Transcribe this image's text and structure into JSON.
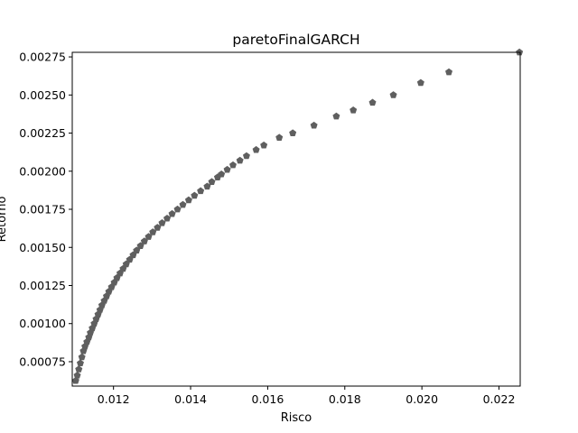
{
  "chart_data": {
    "type": "scatter",
    "title": "paretoFinalGARCH",
    "xlabel": "Risco",
    "ylabel": "Retorno",
    "xlim": [
      0.01093,
      0.02255
    ],
    "ylim": [
      0.00059,
      0.00278
    ],
    "xticks": [
      0.012,
      0.014,
      0.016,
      0.018,
      0.02,
      0.022
    ],
    "xtick_labels": [
      "0.012",
      "0.014",
      "0.016",
      "0.018",
      "0.020",
      "0.022"
    ],
    "yticks": [
      0.00075,
      0.001,
      0.00125,
      0.0015,
      0.00175,
      0.002,
      0.00225,
      0.0025,
      0.00275
    ],
    "ytick_labels": [
      "0.00075",
      "0.00100",
      "0.00125",
      "0.00150",
      "0.00175",
      "0.00200",
      "0.00225",
      "0.00250",
      "0.00275"
    ],
    "grid": false,
    "marker": "pentagon",
    "marker_color": "#5f5f5f",
    "points": [
      [
        0.01102,
        0.000625
      ],
      [
        0.01106,
        0.00066
      ],
      [
        0.0111,
        0.0007
      ],
      [
        0.01114,
        0.00074
      ],
      [
        0.01118,
        0.00078
      ],
      [
        0.01122,
        0.00082
      ],
      [
        0.01126,
        0.00085
      ],
      [
        0.01131,
        0.00088
      ],
      [
        0.01136,
        0.00091
      ],
      [
        0.0114,
        0.00094
      ],
      [
        0.01145,
        0.00097
      ],
      [
        0.0115,
        0.001
      ],
      [
        0.01155,
        0.00103
      ],
      [
        0.0116,
        0.00106
      ],
      [
        0.01165,
        0.00109
      ],
      [
        0.0117,
        0.00112
      ],
      [
        0.01176,
        0.00115
      ],
      [
        0.01182,
        0.00118
      ],
      [
        0.01188,
        0.00121
      ],
      [
        0.01195,
        0.00124
      ],
      [
        0.01202,
        0.00127
      ],
      [
        0.01209,
        0.0013
      ],
      [
        0.01217,
        0.00133
      ],
      [
        0.01225,
        0.00136
      ],
      [
        0.01233,
        0.00139
      ],
      [
        0.01242,
        0.00142
      ],
      [
        0.01251,
        0.00145
      ],
      [
        0.0126,
        0.00148
      ],
      [
        0.0127,
        0.00151
      ],
      [
        0.0128,
        0.00154
      ],
      [
        0.01291,
        0.00157
      ],
      [
        0.01302,
        0.0016
      ],
      [
        0.01314,
        0.00163
      ],
      [
        0.01326,
        0.00166
      ],
      [
        0.01339,
        0.00169
      ],
      [
        0.01352,
        0.00172
      ],
      [
        0.01366,
        0.00175
      ],
      [
        0.0138,
        0.00178
      ],
      [
        0.01395,
        0.00181
      ],
      [
        0.0141,
        0.00184
      ],
      [
        0.01426,
        0.00187
      ],
      [
        0.01443,
        0.0019
      ],
      [
        0.01455,
        0.00193
      ],
      [
        0.0147,
        0.00196
      ],
      [
        0.0148,
        0.00198
      ],
      [
        0.01495,
        0.00201
      ],
      [
        0.0151,
        0.00204
      ],
      [
        0.01528,
        0.00207
      ],
      [
        0.01545,
        0.0021
      ],
      [
        0.0157,
        0.00214
      ],
      [
        0.0159,
        0.00217
      ],
      [
        0.0163,
        0.00222
      ],
      [
        0.01665,
        0.00225
      ],
      [
        0.0172,
        0.0023
      ],
      [
        0.01778,
        0.00236
      ],
      [
        0.01822,
        0.0024
      ],
      [
        0.01872,
        0.00245
      ],
      [
        0.01926,
        0.0025
      ],
      [
        0.01997,
        0.00258
      ],
      [
        0.0207,
        0.00265
      ],
      [
        0.02253,
        0.00278
      ]
    ]
  }
}
